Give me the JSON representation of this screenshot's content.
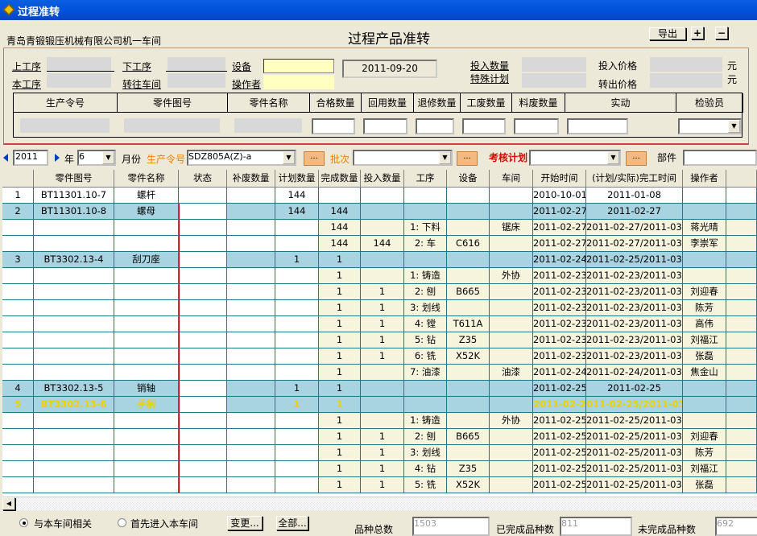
{
  "window": {
    "title": "过程准转"
  },
  "header": {
    "company": "青岛青锻锻压机械有限公司机一车间",
    "title": "过程产品准转",
    "export": "导出",
    "plus": "+",
    "minus": "−"
  },
  "form": {
    "prev_proc": "上工序",
    "next_proc": "下工序",
    "equipment": "设备",
    "date": "2011-09-20",
    "input_qty": "投入数量",
    "input_price": "投入价格",
    "yuan": "元",
    "this_proc": "本工序",
    "to_workshop": "转往车间",
    "operator": "操作者",
    "special_plan": "特殊计划",
    "out_price": "转出价格",
    "columns": [
      "生产令号",
      "零件图号",
      "零件名称",
      "合格数量",
      "回用数量",
      "退修数量",
      "工废数量",
      "料废数量",
      "实动",
      "检验员"
    ]
  },
  "filter": {
    "year": "2011",
    "year_label": "年",
    "month": "6",
    "month_label": "月份",
    "order_label": "生产令号",
    "order": "SDZ805A(Z)-a",
    "batch_label": "批次",
    "batch": "",
    "plan_label": "考核计划",
    "plan": "",
    "part_label": "部件",
    "part": "",
    "dots": "..."
  },
  "table": {
    "headers": [
      "",
      "零件图号",
      "零件名称",
      "状态",
      "补废数量",
      "计划数量",
      "完成数量",
      "投入数量",
      "工序",
      "设备",
      "车间",
      "开始时间",
      "(计划/实际)完工时间",
      "操作者",
      ""
    ],
    "rows": [
      {
        "type": "first",
        "flag": false,
        "cells": [
          "1",
          "BT11301.10-7",
          "螺杆",
          "",
          "",
          "144",
          "",
          "",
          "",
          "",
          "",
          "2010-10-01",
          "2011-01-08",
          "",
          ""
        ]
      },
      {
        "type": "main",
        "flag": true,
        "cells": [
          "2",
          "BT11301.10-8",
          "螺母",
          "",
          "",
          "144",
          "144",
          "",
          "",
          "",
          "",
          "2011-02-27",
          "2011-02-27",
          "",
          ""
        ]
      },
      {
        "type": "sub",
        "flag": true,
        "cells": [
          "",
          "",
          "",
          "",
          "",
          "",
          "144",
          "",
          "1: 下料",
          "",
          "锯床",
          "2011-02-27",
          "2011-02-27/2011-03-15",
          "蒋光晴",
          ""
        ]
      },
      {
        "type": "sub",
        "flag": true,
        "cells": [
          "",
          "",
          "",
          "",
          "",
          "",
          "144",
          "144",
          "2: 车",
          "C616",
          "",
          "2011-02-27",
          "2011-02-27/2011-03-16",
          "李崇军",
          ""
        ]
      },
      {
        "type": "main",
        "flag": true,
        "cells": [
          "3",
          "BT3302.13-4",
          "刮刀座",
          "",
          "",
          "1",
          "1",
          "",
          "",
          "",
          "",
          "2011-02-24",
          "2011-02-25/2011-03-19",
          "",
          ""
        ]
      },
      {
        "type": "sub",
        "flag": true,
        "cells": [
          "",
          "",
          "",
          "",
          "",
          "",
          "1",
          "",
          "1: 铸造",
          "",
          "外协",
          "2011-02-23",
          "2011-02-23/2011-03-15",
          "",
          ""
        ]
      },
      {
        "type": "sub",
        "flag": true,
        "cells": [
          "",
          "",
          "",
          "",
          "",
          "",
          "1",
          "1",
          "2: 刨",
          "B665",
          "",
          "2011-02-23",
          "2011-02-23/2011-03-16",
          "刘迎春",
          ""
        ]
      },
      {
        "type": "sub",
        "flag": true,
        "cells": [
          "",
          "",
          "",
          "",
          "",
          "",
          "1",
          "1",
          "3: 划线",
          "",
          "",
          "2011-02-23",
          "2011-02-23/2011-03-16",
          "陈芳",
          ""
        ]
      },
      {
        "type": "sub",
        "flag": true,
        "cells": [
          "",
          "",
          "",
          "",
          "",
          "",
          "1",
          "1",
          "4: 镗",
          "T611A",
          "",
          "2011-02-23",
          "2011-02-23/2011-03-16",
          "高伟",
          ""
        ]
      },
      {
        "type": "sub",
        "flag": true,
        "cells": [
          "",
          "",
          "",
          "",
          "",
          "",
          "1",
          "1",
          "5: 钻",
          "Z35",
          "",
          "2011-02-23",
          "2011-02-23/2011-03-16",
          "刘福江",
          ""
        ]
      },
      {
        "type": "sub",
        "flag": true,
        "cells": [
          "",
          "",
          "",
          "",
          "",
          "",
          "1",
          "1",
          "6: 铣",
          "X52K",
          "",
          "2011-02-23",
          "2011-02-23/2011-03-16",
          "张磊",
          ""
        ]
      },
      {
        "type": "sub",
        "flag": true,
        "cells": [
          "",
          "",
          "",
          "",
          "",
          "",
          "1",
          "",
          "7: 油漆",
          "",
          "油漆",
          "2011-02-24",
          "2011-02-24/2011-03-19",
          "焦金山",
          ""
        ]
      },
      {
        "type": "main",
        "flag": true,
        "cells": [
          "4",
          "BT3302.13-5",
          "销轴",
          "",
          "",
          "1",
          "1",
          "",
          "",
          "",
          "",
          "2011-02-25",
          "2011-02-25",
          "",
          ""
        ]
      },
      {
        "type": "main",
        "flag": true,
        "highlight": true,
        "cells": [
          "5",
          "BT3302.13-6",
          "手柄",
          "",
          "",
          "1",
          "1",
          "",
          "",
          "",
          "",
          "2011-02-25",
          "011-02-25/2011-03-1",
          "",
          ""
        ]
      },
      {
        "type": "sub",
        "flag": true,
        "cells": [
          "",
          "",
          "",
          "",
          "",
          "",
          "1",
          "",
          "1: 铸造",
          "",
          "外协",
          "2011-02-25",
          "2011-02-25/2011-03-15",
          "",
          ""
        ]
      },
      {
        "type": "sub",
        "flag": true,
        "cells": [
          "",
          "",
          "",
          "",
          "",
          "",
          "1",
          "1",
          "2: 刨",
          "B665",
          "",
          "2011-02-25",
          "2011-02-25/2011-03-16",
          "刘迎春",
          ""
        ]
      },
      {
        "type": "sub",
        "flag": true,
        "cells": [
          "",
          "",
          "",
          "",
          "",
          "",
          "1",
          "1",
          "3: 划线",
          "",
          "",
          "2011-02-25",
          "2011-02-25/2011-03-16",
          "陈芳",
          ""
        ]
      },
      {
        "type": "sub",
        "flag": true,
        "cells": [
          "",
          "",
          "",
          "",
          "",
          "",
          "1",
          "1",
          "4: 钻",
          "Z35",
          "",
          "2011-02-25",
          "2011-02-25/2011-03-16",
          "刘福江",
          ""
        ]
      },
      {
        "type": "sub",
        "flag": true,
        "cells": [
          "",
          "",
          "",
          "",
          "",
          "",
          "1",
          "1",
          "5: 铣",
          "X52K",
          "",
          "2011-02-25",
          "2011-02-25/2011-03-16",
          "张磊",
          ""
        ]
      }
    ]
  },
  "footer": {
    "radio1": "与本车间相关",
    "radio2": "首先进入本车间",
    "radio_selected": 1,
    "change": "变更...",
    "all": "全部...",
    "total_label": "品种总数",
    "total": "1503",
    "done_label": "已完成品种数",
    "done": "811",
    "undone_label": "未完成品种数",
    "undone": "692"
  },
  "colors": {
    "main_row": "#a8d4e2",
    "sub_row": "#f6f4dc",
    "highlight_text": "#f0d000",
    "flag": "#e00000"
  }
}
